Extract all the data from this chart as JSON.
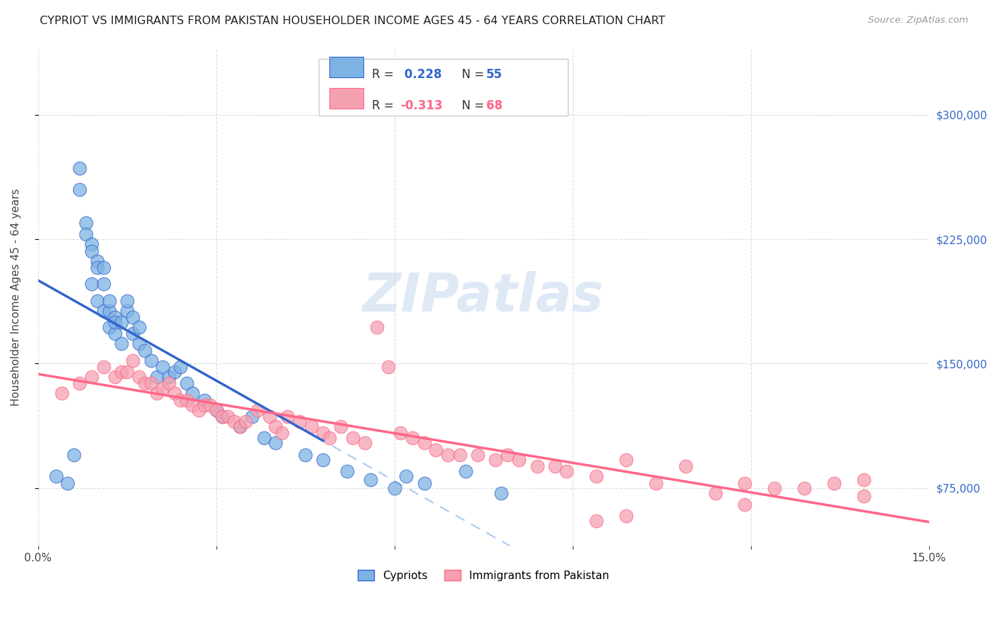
{
  "title": "CYPRIOT VS IMMIGRANTS FROM PAKISTAN HOUSEHOLDER INCOME AGES 45 - 64 YEARS CORRELATION CHART",
  "source": "Source: ZipAtlas.com",
  "ylabel": "Householder Income Ages 45 - 64 years",
  "xlim": [
    0.0,
    0.15
  ],
  "ylim": [
    40000,
    340000
  ],
  "xticks": [
    0.0,
    0.03,
    0.06,
    0.09,
    0.12,
    0.15
  ],
  "yticks": [
    75000,
    150000,
    225000,
    300000
  ],
  "blue_color": "#7EB2E4",
  "pink_color": "#F4A0B0",
  "blue_line_color": "#3366CC",
  "pink_line_color": "#FF6688",
  "dashed_line_color": "#AACCEE",
  "watermark": "ZIPatlas",
  "blue_x": [
    0.003,
    0.005,
    0.006,
    0.007,
    0.007,
    0.008,
    0.008,
    0.009,
    0.009,
    0.009,
    0.01,
    0.01,
    0.01,
    0.011,
    0.011,
    0.011,
    0.012,
    0.012,
    0.012,
    0.013,
    0.013,
    0.013,
    0.014,
    0.014,
    0.015,
    0.015,
    0.016,
    0.016,
    0.017,
    0.017,
    0.018,
    0.019,
    0.02,
    0.021,
    0.022,
    0.023,
    0.024,
    0.025,
    0.026,
    0.028,
    0.03,
    0.031,
    0.034,
    0.036,
    0.038,
    0.04,
    0.045,
    0.048,
    0.052,
    0.056,
    0.06,
    0.062,
    0.065,
    0.072,
    0.078
  ],
  "blue_y": [
    82000,
    78000,
    95000,
    255000,
    268000,
    235000,
    228000,
    222000,
    218000,
    198000,
    212000,
    208000,
    188000,
    208000,
    198000,
    182000,
    172000,
    182000,
    188000,
    178000,
    168000,
    175000,
    175000,
    162000,
    182000,
    188000,
    178000,
    168000,
    172000,
    162000,
    158000,
    152000,
    142000,
    148000,
    142000,
    145000,
    148000,
    138000,
    132000,
    128000,
    122000,
    118000,
    112000,
    118000,
    105000,
    102000,
    95000,
    92000,
    85000,
    80000,
    75000,
    82000,
    78000,
    85000,
    72000
  ],
  "pink_x": [
    0.004,
    0.007,
    0.009,
    0.011,
    0.013,
    0.014,
    0.015,
    0.016,
    0.017,
    0.018,
    0.019,
    0.02,
    0.021,
    0.022,
    0.023,
    0.024,
    0.025,
    0.026,
    0.027,
    0.028,
    0.029,
    0.03,
    0.031,
    0.032,
    0.033,
    0.034,
    0.035,
    0.037,
    0.039,
    0.04,
    0.041,
    0.042,
    0.044,
    0.046,
    0.048,
    0.049,
    0.051,
    0.053,
    0.055,
    0.057,
    0.059,
    0.061,
    0.063,
    0.065,
    0.067,
    0.069,
    0.071,
    0.074,
    0.077,
    0.079,
    0.081,
    0.084,
    0.087,
    0.089,
    0.094,
    0.099,
    0.104,
    0.109,
    0.114,
    0.119,
    0.124,
    0.129,
    0.134,
    0.139,
    0.094,
    0.099,
    0.119,
    0.139
  ],
  "pink_y": [
    132000,
    138000,
    142000,
    148000,
    142000,
    145000,
    145000,
    152000,
    142000,
    138000,
    138000,
    132000,
    135000,
    138000,
    132000,
    128000,
    128000,
    125000,
    122000,
    125000,
    125000,
    122000,
    118000,
    118000,
    115000,
    112000,
    115000,
    122000,
    118000,
    112000,
    108000,
    118000,
    115000,
    112000,
    108000,
    105000,
    112000,
    105000,
    102000,
    172000,
    148000,
    108000,
    105000,
    102000,
    98000,
    95000,
    95000,
    95000,
    92000,
    95000,
    92000,
    88000,
    88000,
    85000,
    82000,
    92000,
    78000,
    88000,
    72000,
    78000,
    75000,
    75000,
    78000,
    80000,
    55000,
    58000,
    65000,
    70000
  ]
}
